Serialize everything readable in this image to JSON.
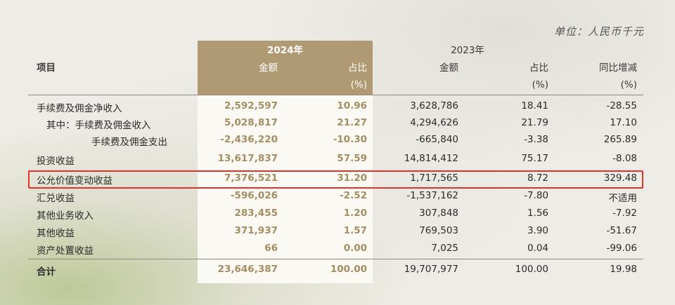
{
  "unit_label": "单位：人民币千元",
  "header": {
    "item": "项目",
    "year2024": "2024年",
    "year2023": "2023年",
    "amount": "金额",
    "share": "占比",
    "share_unit": "(%)",
    "yoy": "同比增减",
    "yoy_unit": "(%)"
  },
  "rows": [
    {
      "name": "手续费及佣金净收入",
      "a24": "2,592,597",
      "p24": "10.96",
      "a23": "3,628,786",
      "p23": "18.41",
      "yoy": "-28.55"
    },
    {
      "name": "其中：手续费及佣金收入",
      "a24": "5,028,817",
      "p24": "21.27",
      "a23": "4,294,626",
      "p23": "21.79",
      "yoy": "17.10"
    },
    {
      "name": "手续费及佣金支出",
      "a24": "-2,436,220",
      "p24": "-10.30",
      "a23": "-665,840",
      "p23": "-3.38",
      "yoy": "265.89"
    },
    {
      "name": "投资收益",
      "a24": "13,617,837",
      "p24": "57.59",
      "a23": "14,814,412",
      "p23": "75.17",
      "yoy": "-8.08"
    },
    {
      "name": "公允价值变动收益",
      "a24": "7,376,521",
      "p24": "31.20",
      "a23": "1,717,565",
      "p23": "8.72",
      "yoy": "329.48"
    },
    {
      "name": "汇兑收益",
      "a24": "-596,026",
      "p24": "-2.52",
      "a23": "-1,537,162",
      "p23": "-7.80",
      "yoy": "不适用"
    },
    {
      "name": "其他业务收入",
      "a24": "283,455",
      "p24": "1.20",
      "a23": "307,848",
      "p23": "1.56",
      "yoy": "-7.92"
    },
    {
      "name": "其他收益",
      "a24": "371,937",
      "p24": "1.57",
      "a23": "769,503",
      "p23": "3.90",
      "yoy": "-51.67"
    },
    {
      "name": "资产处置收益",
      "a24": "66",
      "p24": "0.00",
      "a23": "7,025",
      "p23": "0.04",
      "yoy": "-99.06"
    }
  ],
  "total": {
    "name": "合计",
    "a24": "23,646,387",
    "p24": "100.00",
    "a23": "19,707,977",
    "p23": "100.00",
    "yoy": "19.98"
  },
  "highlight_color": "#e0332b",
  "accent_color": "#b09a73"
}
